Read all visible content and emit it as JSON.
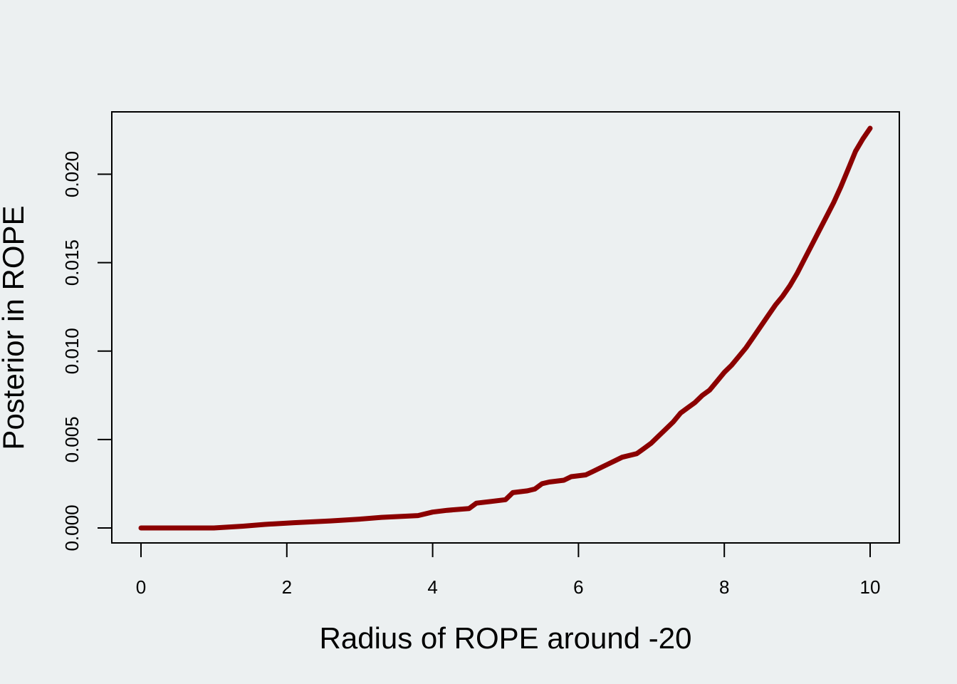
{
  "chart_data": {
    "type": "line",
    "title": "",
    "xlabel": "Radius of ROPE around -20",
    "ylabel": "Posterior in ROPE",
    "xlim": [
      0,
      10
    ],
    "ylim": [
      0,
      0.0226
    ],
    "x_ticks": [
      0,
      2,
      4,
      6,
      8,
      10
    ],
    "x_tick_labels": [
      "0",
      "2",
      "4",
      "6",
      "8",
      "10"
    ],
    "y_ticks": [
      0,
      0.005,
      0.01,
      0.015,
      0.02
    ],
    "y_tick_labels": [
      "0.000",
      "0.005",
      "0.010",
      "0.015",
      "0.020"
    ],
    "grid": false,
    "legend": "none",
    "line_color": "#8b0000",
    "background_color": "#ecf0f1",
    "series": [
      {
        "x": [
          0,
          1.0,
          1.4,
          1.7,
          2.1,
          2.6,
          3.0,
          3.3,
          3.8,
          4.0,
          4.2,
          4.5,
          4.6,
          4.8,
          5.0,
          5.1,
          5.3,
          5.4,
          5.5,
          5.6,
          5.8,
          5.9,
          6.1,
          6.2,
          6.3,
          6.4,
          6.5,
          6.6,
          6.8,
          6.9,
          7.0,
          7.1,
          7.2,
          7.3,
          7.4,
          7.5,
          7.6,
          7.7,
          7.8,
          7.9,
          8.0,
          8.1,
          8.2,
          8.3,
          8.4,
          8.5,
          8.6,
          8.7,
          8.8,
          8.9,
          9.0,
          9.1,
          9.2,
          9.3,
          9.4,
          9.5,
          9.6,
          9.7,
          9.8,
          9.9,
          10.0
        ],
        "y": [
          0,
          0,
          0.0001,
          0.0002,
          0.0003,
          0.0004,
          0.0005,
          0.0006,
          0.0007,
          0.0009,
          0.001,
          0.0011,
          0.0014,
          0.0015,
          0.0016,
          0.002,
          0.0021,
          0.0022,
          0.0025,
          0.0026,
          0.0027,
          0.0029,
          0.003,
          0.0032,
          0.0034,
          0.0036,
          0.0038,
          0.004,
          0.0042,
          0.0045,
          0.0048,
          0.0052,
          0.0056,
          0.006,
          0.0065,
          0.0068,
          0.0071,
          0.0075,
          0.0078,
          0.0083,
          0.0088,
          0.0092,
          0.0097,
          0.0102,
          0.0108,
          0.0114,
          0.012,
          0.0126,
          0.0131,
          0.0137,
          0.0144,
          0.0152,
          0.016,
          0.0168,
          0.0176,
          0.0184,
          0.0193,
          0.0203,
          0.0213,
          0.022,
          0.0226
        ]
      }
    ]
  }
}
